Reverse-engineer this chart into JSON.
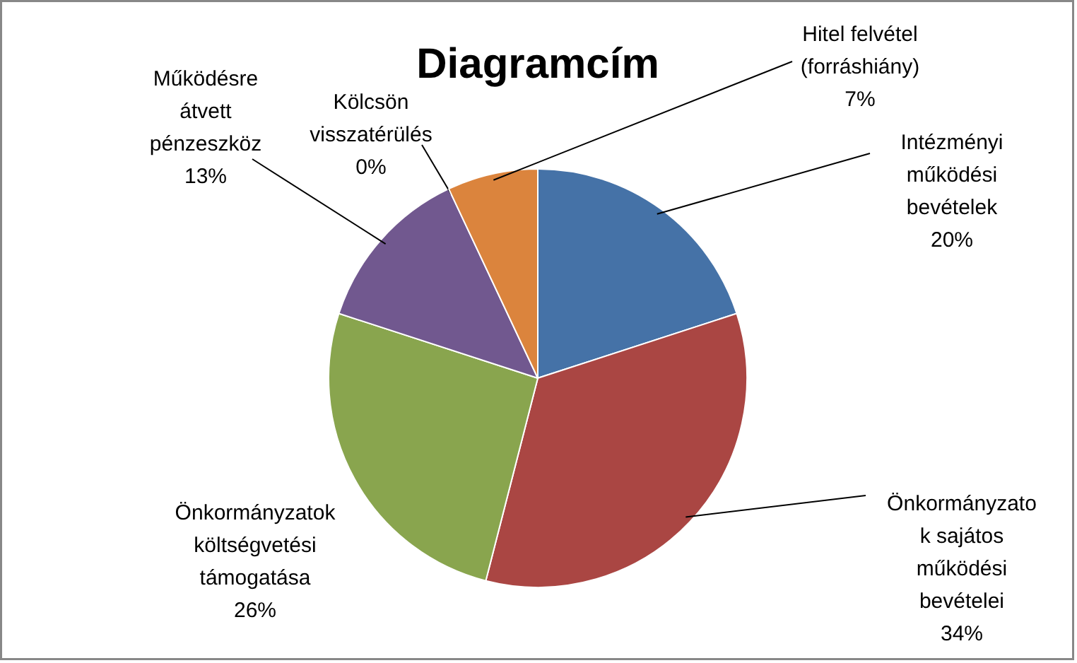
{
  "chart_data": {
    "type": "pie",
    "title": "Diagramcím",
    "categories": [
      "Intézményi működési bevételek",
      "Önkormányzatok sajátos működési bevételei",
      "Önkormányzatok költségvetési támogatása",
      "Működésre átvett pénzeszköz",
      "Kölcsön visszatérülés",
      "Hitel felvétel (forráshiány)"
    ],
    "values": [
      20,
      34,
      26,
      13,
      0,
      7
    ],
    "colors": [
      "#4572a7",
      "#aa4643",
      "#89a54e",
      "#71588f",
      "#4198af",
      "#db843d"
    ],
    "value_labels": [
      "20%",
      "34%",
      "26%",
      "13%",
      "0%",
      "7%"
    ]
  }
}
